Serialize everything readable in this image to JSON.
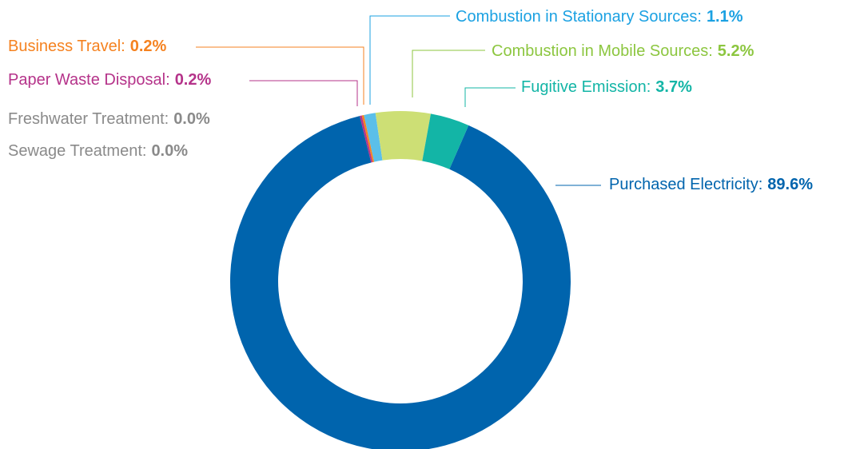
{
  "chart_data": {
    "type": "donut",
    "categories": [
      "Purchased Electricity:",
      "Sewage Treatment:",
      "Freshwater Treatment:",
      "Paper Waste Disposal:",
      "Business Travel:",
      "Combustion in Stationary Sources:",
      "Combustion in Mobile Sources:",
      "Fugitive Emission:"
    ],
    "values": [
      89.6,
      0.0,
      0.0,
      0.2,
      0.2,
      1.1,
      5.2,
      3.7
    ],
    "value_labels": [
      "89.6%",
      "0.0%",
      "0.0%",
      "0.2%",
      "0.2%",
      "1.1%",
      "5.2%",
      "3.7%"
    ],
    "colors": [
      "#0064ad",
      "#9a9a9a",
      "#9a9a9a",
      "#b5338a",
      "#f58220",
      "#5bbfe9",
      "#cddf75",
      "#13b5a6"
    ],
    "label_colors": [
      "#0064ad",
      "#8a8a8a",
      "#8a8a8a",
      "#b5338a",
      "#f58220",
      "#1ba1e2",
      "#8cc63f",
      "#13b5a6"
    ]
  }
}
